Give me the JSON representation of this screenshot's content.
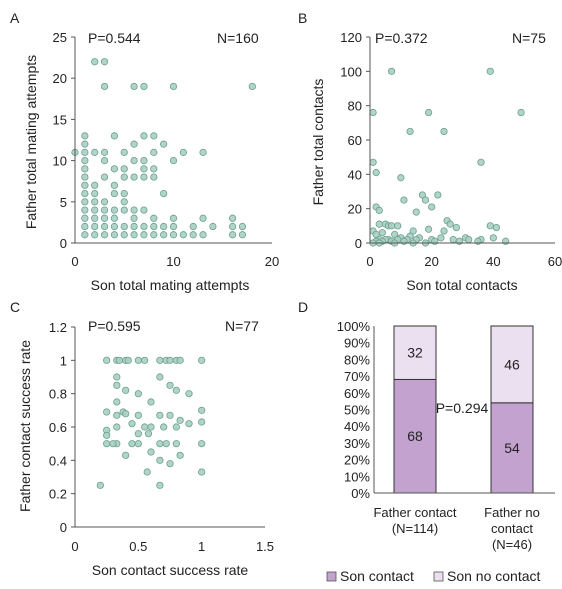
{
  "panels": {
    "A": "A",
    "B": "B",
    "C": "C",
    "D": "D"
  },
  "colors": {
    "point_fill": "#a9cfc2",
    "point_stroke": "#6a9f90",
    "son_contact": "#c4a2d0",
    "son_no_contact": "#ebe0f0",
    "axis": "#555555"
  },
  "chart_data": [
    {
      "panel": "A",
      "type": "scatter",
      "xlabel": "Son total mating attempts",
      "ylabel": "Father total mating attempts",
      "xlim": [
        0,
        20
      ],
      "ylim": [
        0,
        25
      ],
      "xticks": [
        "0",
        "10",
        "20"
      ],
      "yticks": [
        "0",
        "5",
        "10",
        "15",
        "20",
        "25"
      ],
      "p_value": "P=0.544",
      "n": "N=160",
      "points": [
        [
          2,
          22
        ],
        [
          3,
          22
        ],
        [
          3,
          19
        ],
        [
          6,
          19
        ],
        [
          7,
          19
        ],
        [
          10,
          19
        ],
        [
          18,
          19
        ],
        [
          1,
          13
        ],
        [
          4,
          13
        ],
        [
          7,
          13
        ],
        [
          8,
          13
        ],
        [
          1,
          12
        ],
        [
          6,
          12
        ],
        [
          9,
          12
        ],
        [
          0,
          11
        ],
        [
          1,
          11
        ],
        [
          2,
          11
        ],
        [
          3,
          11
        ],
        [
          5,
          11
        ],
        [
          8,
          11
        ],
        [
          11,
          11
        ],
        [
          13,
          11
        ],
        [
          1,
          10
        ],
        [
          3,
          10
        ],
        [
          6,
          10
        ],
        [
          7,
          10
        ],
        [
          10,
          10
        ],
        [
          1,
          9
        ],
        [
          4,
          9
        ],
        [
          5,
          9
        ],
        [
          7,
          9
        ],
        [
          8,
          9
        ],
        [
          1,
          8
        ],
        [
          3,
          8
        ],
        [
          5,
          8
        ],
        [
          6,
          8
        ],
        [
          7,
          8
        ],
        [
          8,
          8
        ],
        [
          1,
          7
        ],
        [
          2,
          7
        ],
        [
          4,
          7
        ],
        [
          1,
          6
        ],
        [
          2,
          6
        ],
        [
          4,
          6
        ],
        [
          5,
          6
        ],
        [
          9,
          6
        ],
        [
          1,
          5
        ],
        [
          2,
          5
        ],
        [
          3,
          5
        ],
        [
          5,
          5
        ],
        [
          1,
          4
        ],
        [
          2,
          4
        ],
        [
          3,
          4
        ],
        [
          4,
          4
        ],
        [
          5,
          4
        ],
        [
          6,
          4
        ],
        [
          7,
          4
        ],
        [
          1,
          3
        ],
        [
          2,
          3
        ],
        [
          3,
          3
        ],
        [
          4,
          3
        ],
        [
          6,
          3
        ],
        [
          8,
          3
        ],
        [
          10,
          3
        ],
        [
          13,
          3
        ],
        [
          16,
          3
        ],
        [
          1,
          2
        ],
        [
          2,
          2
        ],
        [
          3,
          2
        ],
        [
          4,
          2
        ],
        [
          5,
          2
        ],
        [
          6,
          2
        ],
        [
          7,
          2
        ],
        [
          8,
          2
        ],
        [
          9,
          2
        ],
        [
          10,
          2
        ],
        [
          12,
          2
        ],
        [
          14,
          2
        ],
        [
          16,
          2
        ],
        [
          17,
          2
        ],
        [
          1,
          1
        ],
        [
          2,
          1
        ],
        [
          3,
          1
        ],
        [
          4,
          1
        ],
        [
          5,
          1
        ],
        [
          6,
          1
        ],
        [
          7,
          1
        ],
        [
          8,
          1
        ],
        [
          9,
          1
        ],
        [
          10,
          1
        ],
        [
          11,
          1
        ],
        [
          12,
          1
        ],
        [
          13,
          1
        ],
        [
          16,
          1
        ],
        [
          17,
          1
        ]
      ]
    },
    {
      "panel": "B",
      "type": "scatter",
      "xlabel": "Son total contacts",
      "ylabel": "Father total contacts",
      "xlim": [
        0,
        60
      ],
      "ylim": [
        0,
        120
      ],
      "xticks": [
        "0",
        "20",
        "40",
        "60"
      ],
      "yticks": [
        "0",
        "20",
        "40",
        "60",
        "80",
        "100",
        "120"
      ],
      "p_value": "P=0.372",
      "n": "N=75",
      "points": [
        [
          7,
          100
        ],
        [
          39,
          100
        ],
        [
          1,
          76
        ],
        [
          19,
          76
        ],
        [
          49,
          76
        ],
        [
          24,
          65
        ],
        [
          13,
          65
        ],
        [
          1,
          47
        ],
        [
          36,
          47
        ],
        [
          2,
          41
        ],
        [
          10,
          38
        ],
        [
          22,
          28
        ],
        [
          17,
          28
        ],
        [
          18,
          25
        ],
        [
          11,
          25
        ],
        [
          20,
          21
        ],
        [
          2,
          21
        ],
        [
          3,
          19
        ],
        [
          15,
          18
        ],
        [
          25,
          13
        ],
        [
          26,
          11
        ],
        [
          3,
          11
        ],
        [
          5,
          11
        ],
        [
          6,
          10
        ],
        [
          7,
          10
        ],
        [
          9,
          10
        ],
        [
          39,
          10
        ],
        [
          41,
          9
        ],
        [
          28,
          9
        ],
        [
          19,
          8
        ],
        [
          24,
          7
        ],
        [
          14,
          7
        ],
        [
          1,
          7
        ],
        [
          4,
          6
        ],
        [
          2,
          5
        ],
        [
          8,
          5
        ],
        [
          13,
          4
        ],
        [
          23,
          3
        ],
        [
          31,
          3
        ],
        [
          40,
          3
        ],
        [
          16,
          3
        ],
        [
          10,
          3
        ],
        [
          6,
          2
        ],
        [
          12,
          2
        ],
        [
          20,
          2
        ],
        [
          27,
          2
        ],
        [
          32,
          2
        ],
        [
          36,
          2
        ],
        [
          3,
          2
        ],
        [
          5,
          2
        ],
        [
          9,
          2
        ],
        [
          15,
          2
        ],
        [
          21,
          1
        ],
        [
          29,
          1
        ],
        [
          35,
          1
        ],
        [
          44,
          1
        ],
        [
          2,
          1
        ],
        [
          4,
          1
        ],
        [
          7,
          1
        ],
        [
          11,
          1
        ],
        [
          1,
          0
        ],
        [
          3,
          0
        ],
        [
          8,
          0
        ],
        [
          14,
          0
        ],
        [
          18,
          0
        ]
      ]
    },
    {
      "panel": "C",
      "type": "scatter",
      "xlabel": "Son contact success rate",
      "ylabel": "Father contact success rate",
      "xlim": [
        0,
        1.5
      ],
      "ylim": [
        0,
        1.2
      ],
      "xticks": [
        "0",
        "0.5",
        "1",
        "1.5"
      ],
      "yticks": [
        "0",
        "0.2",
        "0.4",
        "0.6",
        "0.8",
        "1",
        "1.2"
      ],
      "p_value": "P=0.595",
      "n": "N=77",
      "points": [
        [
          0.25,
          1.0
        ],
        [
          0.33,
          1.0
        ],
        [
          0.35,
          1.0
        ],
        [
          0.4,
          1.0
        ],
        [
          0.42,
          1.0
        ],
        [
          0.5,
          1.0
        ],
        [
          0.55,
          1.0
        ],
        [
          0.67,
          1.0
        ],
        [
          0.72,
          1.0
        ],
        [
          0.75,
          1.0
        ],
        [
          0.8,
          1.0
        ],
        [
          0.83,
          1.0
        ],
        [
          1.0,
          1.0
        ],
        [
          0.33,
          0.9
        ],
        [
          0.33,
          0.85
        ],
        [
          0.67,
          0.9
        ],
        [
          0.75,
          0.85
        ],
        [
          0.4,
          0.82
        ],
        [
          0.8,
          0.82
        ],
        [
          0.9,
          0.8
        ],
        [
          0.5,
          0.8
        ],
        [
          0.33,
          0.75
        ],
        [
          0.6,
          0.75
        ],
        [
          0.25,
          0.69
        ],
        [
          0.38,
          0.69
        ],
        [
          0.4,
          0.68
        ],
        [
          0.33,
          0.67
        ],
        [
          0.5,
          0.67
        ],
        [
          0.67,
          0.67
        ],
        [
          0.75,
          0.67
        ],
        [
          1.0,
          0.7
        ],
        [
          0.9,
          0.62
        ],
        [
          0.83,
          0.64
        ],
        [
          0.45,
          0.62
        ],
        [
          0.55,
          0.6
        ],
        [
          0.25,
          0.58
        ],
        [
          0.33,
          0.6
        ],
        [
          0.6,
          0.6
        ],
        [
          0.7,
          0.6
        ],
        [
          0.8,
          0.6
        ],
        [
          1.0,
          0.63
        ],
        [
          0.25,
          0.55
        ],
        [
          0.5,
          0.56
        ],
        [
          0.58,
          0.56
        ],
        [
          0.25,
          0.5
        ],
        [
          0.33,
          0.5
        ],
        [
          0.45,
          0.5
        ],
        [
          0.5,
          0.5
        ],
        [
          0.67,
          0.5
        ],
        [
          0.72,
          0.5
        ],
        [
          0.8,
          0.5
        ],
        [
          1.0,
          0.5
        ],
        [
          0.6,
          0.45
        ],
        [
          0.4,
          0.43
        ],
        [
          0.83,
          0.43
        ],
        [
          0.67,
          0.4
        ],
        [
          0.75,
          0.38
        ],
        [
          0.57,
          0.33
        ],
        [
          1.0,
          0.33
        ],
        [
          0.67,
          0.25
        ],
        [
          0.2,
          0.25
        ],
        [
          0.3,
          0.5
        ]
      ]
    },
    {
      "panel": "D",
      "type": "bar",
      "stacked": true,
      "percent": true,
      "categories": [
        "Father contact\n(N=114)",
        "Father no\ncontact\n(N=46)"
      ],
      "category_lines": [
        [
          "Father contact",
          "(N=114)"
        ],
        [
          "Father no",
          "contact",
          "(N=46)"
        ]
      ],
      "series": [
        {
          "name": "Son contact",
          "values": [
            68,
            54
          ]
        },
        {
          "name": "Son no contact",
          "values": [
            32,
            46
          ]
        }
      ],
      "yticks": [
        "0%",
        "10%",
        "20%",
        "30%",
        "40%",
        "50%",
        "60%",
        "70%",
        "80%",
        "90%",
        "100%"
      ],
      "ylim": [
        0,
        100
      ],
      "p_value": "P=0.294",
      "legend": [
        "Son contact",
        "Son no contact"
      ],
      "legend_position": "bottom"
    }
  ]
}
